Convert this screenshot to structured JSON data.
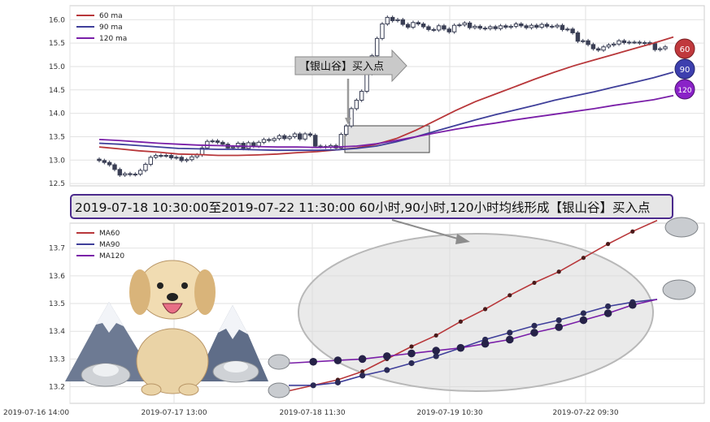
{
  "top_chart": {
    "legend": [
      {
        "label": "60 ma",
        "color": "#b8373a"
      },
      {
        "label": "90 ma",
        "color": "#3f3f9a"
      },
      {
        "label": "120 ma",
        "color": "#7a1fa8"
      }
    ],
    "badges": [
      {
        "label": "60",
        "color": "#c0393d"
      },
      {
        "label": "90",
        "color": "#3d3fae"
      },
      {
        "label": "120",
        "color": "#8a22c8"
      }
    ],
    "arrow_label": "【银山谷】买入点"
  },
  "banner_text": "2019-07-18 10:30:00至2019-07-22 11:30:00 60小时,90小时,120小时均线形成【银山谷】买入点",
  "bottom_chart": {
    "legend": [
      {
        "label": "MA60",
        "color": "#b8373a"
      },
      {
        "label": "MA90",
        "color": "#3f3f9a"
      },
      {
        "label": "MA120",
        "color": "#7a1fa8"
      }
    ]
  },
  "x_tick_labels": [
    "2019-07-16 14:00",
    "2019-07-17 13:00",
    "2019-07-18 11:30",
    "2019-07-19 10:30",
    "2019-07-22 09:30"
  ],
  "chart_data": [
    {
      "type": "candlestick",
      "title": "",
      "y_ticks": [
        12.5,
        13.0,
        13.5,
        14.0,
        14.5,
        15.0,
        15.5,
        16.0
      ],
      "ylim": [
        12.45,
        16.3
      ],
      "x_ticks": [
        "2019-07-16 14:00",
        "2019-07-17 13:00",
        "2019-07-18 11:30",
        "2019-07-19 10:30",
        "2019-07-22 09:30"
      ],
      "grid": true,
      "legend_placement": "top-left",
      "close": [
        12.99,
        12.95,
        12.9,
        12.8,
        12.68,
        12.71,
        12.69,
        12.7,
        12.78,
        12.91,
        13.06,
        13.1,
        13.09,
        13.1,
        13.05,
        13.06,
        12.99,
        13.01,
        13.07,
        13.11,
        13.26,
        13.4,
        13.41,
        13.38,
        13.34,
        13.26,
        13.28,
        13.36,
        13.25,
        13.37,
        13.3,
        13.38,
        13.44,
        13.42,
        13.46,
        13.52,
        13.46,
        13.5,
        13.56,
        13.45,
        13.56,
        13.53,
        13.3,
        13.29,
        13.28,
        13.31,
        13.26,
        13.55,
        13.73,
        14.1,
        14.28,
        14.47,
        14.85,
        15.23,
        15.6,
        15.91,
        16.05,
        15.98,
        16.0,
        15.9,
        15.84,
        15.94,
        15.91,
        15.85,
        15.79,
        15.78,
        15.87,
        15.8,
        15.74,
        15.88,
        15.89,
        15.93,
        15.83,
        15.86,
        15.82,
        15.81,
        15.85,
        15.81,
        15.87,
        15.84,
        15.86,
        15.91,
        15.87,
        15.83,
        15.88,
        15.84,
        15.9,
        15.86,
        15.85,
        15.88,
        15.79,
        15.8,
        15.72,
        15.54,
        15.55,
        15.47,
        15.38,
        15.35,
        15.42,
        15.46,
        15.48,
        15.55,
        15.51,
        15.52,
        15.52,
        15.5,
        15.51,
        15.49,
        15.36,
        15.38,
        15.42
      ],
      "ma60": [
        13.28,
        13.24,
        13.2,
        13.17,
        13.13,
        13.12,
        13.1,
        13.1,
        13.11,
        13.13,
        13.16,
        13.18,
        13.22,
        13.26,
        13.34,
        13.46,
        13.64,
        13.85,
        14.06,
        14.25,
        14.41,
        14.57,
        14.73,
        14.88,
        15.02,
        15.14,
        15.26,
        15.38,
        15.5,
        15.63
      ],
      "ma90": [
        13.36,
        13.34,
        13.31,
        13.28,
        13.25,
        13.24,
        13.23,
        13.23,
        13.22,
        13.21,
        13.21,
        13.21,
        13.22,
        13.25,
        13.3,
        13.39,
        13.5,
        13.62,
        13.74,
        13.86,
        13.97,
        14.07,
        14.17,
        14.28,
        14.37,
        14.46,
        14.56,
        14.66,
        14.76,
        14.88
      ],
      "ma120": [
        13.44,
        13.42,
        13.39,
        13.36,
        13.34,
        13.32,
        13.31,
        13.3,
        13.29,
        13.28,
        13.28,
        13.27,
        13.28,
        13.3,
        13.35,
        13.42,
        13.5,
        13.58,
        13.66,
        13.73,
        13.79,
        13.86,
        13.92,
        13.98,
        14.04,
        14.1,
        14.17,
        14.23,
        14.29,
        14.38
      ]
    },
    {
      "type": "line",
      "title": "",
      "y_ticks": [
        13.2,
        13.3,
        13.4,
        13.5,
        13.6,
        13.7
      ],
      "ylim": [
        13.14,
        13.79
      ],
      "x_ticks": [
        "2019-07-16 14:00",
        "2019-07-17 13:00",
        "2019-07-18 11:30",
        "2019-07-19 10:30",
        "2019-07-22 09:30"
      ],
      "grid": true,
      "legend_placement": "top-left",
      "series": [
        {
          "name": "MA60",
          "values": [
            13.185,
            13.205,
            13.225,
            13.255,
            13.3,
            13.345,
            13.385,
            13.435,
            13.48,
            13.53,
            13.575,
            13.615,
            13.665,
            13.715,
            13.76,
            13.8
          ]
        },
        {
          "name": "MA90",
          "values": [
            13.205,
            13.205,
            13.215,
            13.24,
            13.26,
            13.285,
            13.31,
            13.34,
            13.37,
            13.395,
            13.42,
            13.44,
            13.465,
            13.49,
            13.505,
            13.515
          ]
        },
        {
          "name": "MA120",
          "values": [
            13.285,
            13.29,
            13.295,
            13.3,
            13.31,
            13.32,
            13.33,
            13.34,
            13.355,
            13.37,
            13.395,
            13.415,
            13.44,
            13.465,
            13.495,
            13.515
          ]
        }
      ]
    }
  ]
}
